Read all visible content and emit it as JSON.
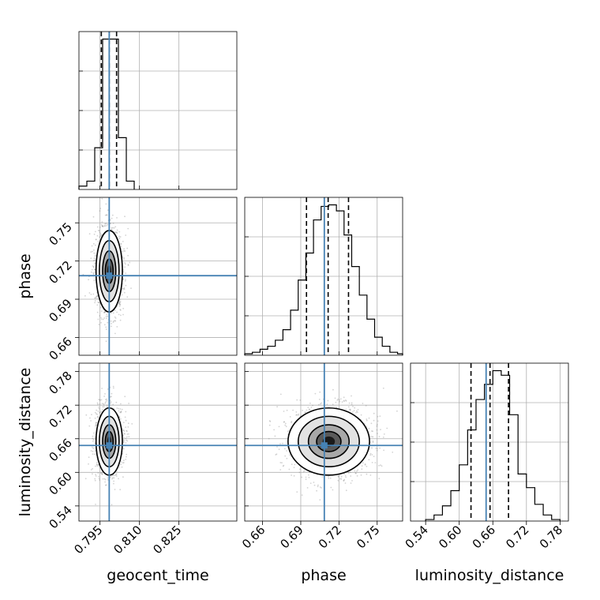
{
  "chart_data": {
    "type": "corner",
    "parameters": [
      "geocent_time",
      "phase",
      "luminosity_distance"
    ],
    "axis_labels": {
      "geocent_time": "geocent_time",
      "phase": "phase",
      "luminosity_distance": "luminosity_distance"
    },
    "ranges": {
      "geocent_time": [
        0.787,
        0.847
      ],
      "phase": [
        0.646,
        0.77
      ],
      "luminosity_distance": [
        0.513,
        0.795
      ]
    },
    "ticks": {
      "geocent_time": [
        0.795,
        0.81,
        0.825
      ],
      "phase": [
        0.66,
        0.69,
        0.72,
        0.75
      ],
      "luminosity_distance": [
        0.54,
        0.6,
        0.66,
        0.72,
        0.78
      ]
    },
    "tick_labels": {
      "geocent_time": [
        "0.795",
        "0.810",
        "0.825"
      ],
      "phase": [
        "0.66",
        "0.69",
        "0.72",
        "0.75"
      ],
      "luminosity_distance": [
        "0.54",
        "0.60",
        "0.66",
        "0.72",
        "0.78"
      ]
    },
    "truths": {
      "geocent_time": 0.7985,
      "phase": 0.7085,
      "luminosity_distance": 0.648
    },
    "quantiles": {
      "geocent_time": [
        0.7955,
        0.7985,
        0.8013
      ],
      "phase": [
        0.6945,
        0.7115,
        0.7275
      ],
      "luminosity_distance": [
        0.621,
        0.655,
        0.688
      ]
    },
    "histograms": {
      "geocent_time": {
        "edges": [
          0.787,
          0.79,
          0.793,
          0.796,
          0.799,
          0.802,
          0.805,
          0.808
        ],
        "counts": [
          0.02,
          0.05,
          0.25,
          0.9,
          0.9,
          0.31,
          0.05
        ]
      },
      "phase": {
        "edges": [
          0.646,
          0.652,
          0.658,
          0.664,
          0.67,
          0.676,
          0.682,
          0.688,
          0.694,
          0.7,
          0.706,
          0.712,
          0.718,
          0.724,
          0.73,
          0.736,
          0.742,
          0.748,
          0.754,
          0.76,
          0.766,
          0.77
        ],
        "counts": [
          0.01,
          0.02,
          0.04,
          0.06,
          0.1,
          0.17,
          0.3,
          0.5,
          0.68,
          0.9,
          0.99,
          1.0,
          0.96,
          0.8,
          0.59,
          0.4,
          0.24,
          0.12,
          0.06,
          0.02,
          0.01
        ]
      },
      "luminosity_distance": {
        "edges": [
          0.54,
          0.555,
          0.57,
          0.585,
          0.6,
          0.615,
          0.63,
          0.645,
          0.66,
          0.675,
          0.69,
          0.705,
          0.72,
          0.735,
          0.75,
          0.765,
          0.78
        ],
        "counts": [
          0.01,
          0.04,
          0.1,
          0.2,
          0.37,
          0.6,
          0.8,
          0.9,
          0.99,
          0.96,
          0.7,
          0.31,
          0.22,
          0.11,
          0.04,
          0.01
        ]
      }
    },
    "pair_densities": [
      {
        "x": "geocent_time",
        "y": "phase",
        "center": [
          0.7985,
          0.712
        ],
        "sigma": [
          0.0025,
          0.016
        ]
      },
      {
        "x": "geocent_time",
        "y": "luminosity_distance",
        "center": [
          0.7985,
          0.655
        ],
        "sigma": [
          0.0025,
          0.03
        ]
      },
      {
        "x": "phase",
        "y": "luminosity_distance",
        "center": [
          0.712,
          0.655
        ],
        "sigma": [
          0.016,
          0.03
        ]
      }
    ],
    "colors": {
      "truth": "#4682b4",
      "hist": "#000000",
      "quantile": "#000000",
      "grid": "#b0b0b0",
      "scatter": "#808080"
    },
    "grid": true
  }
}
